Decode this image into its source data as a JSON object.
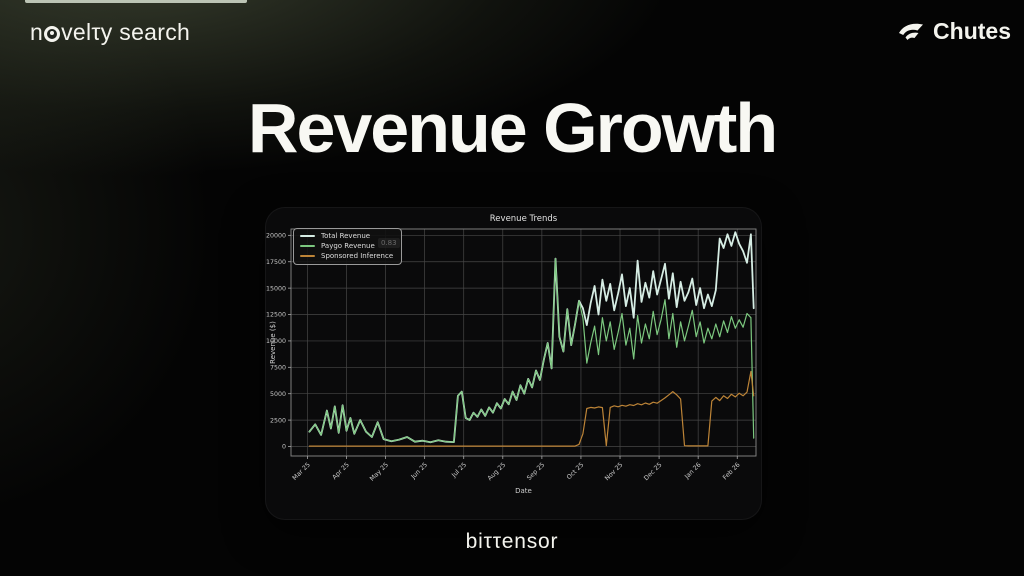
{
  "page": {
    "background": "#040404",
    "top_strip_color": "#ccd5c5",
    "glow_color": "#6c7858"
  },
  "header": {
    "brand_left_pre": "n",
    "brand_left_post": "velτy search",
    "brand_right": "Chutes"
  },
  "hero": {
    "title": "Revenue Growth"
  },
  "footer": {
    "wordmark": "biττensor"
  },
  "chart": {
    "watermark": "0.83"
  },
  "chart_data": {
    "type": "line",
    "title": "Revenue Trends",
    "xlabel": "Date",
    "ylabel": "Revenue ($)",
    "grid": true,
    "legend_position": "upper left",
    "xlim": [
      -0.42,
      11.48
    ],
    "ylim": [
      -900,
      20600
    ],
    "y_ticks": [
      0,
      2500,
      5000,
      7500,
      10000,
      12500,
      15000,
      17500,
      20000
    ],
    "x_ticks": {
      "positions": [
        0,
        1,
        2,
        3,
        4,
        5,
        6,
        7,
        8,
        9,
        10,
        11
      ],
      "labels": [
        "Mar 25",
        "Apr 25",
        "May 25",
        "Jun 25",
        "Jul 25",
        "Aug 25",
        "Sep 25",
        "Oct 25",
        "Nov 25",
        "Dec 25",
        "Jan 26",
        "Feb 26"
      ]
    },
    "x": [
      0.05,
      0.2,
      0.35,
      0.5,
      0.6,
      0.7,
      0.8,
      0.9,
      1.0,
      1.1,
      1.2,
      1.35,
      1.5,
      1.65,
      1.8,
      1.95,
      2.15,
      2.35,
      2.55,
      2.75,
      2.95,
      3.15,
      3.35,
      3.55,
      3.75,
      3.85,
      3.95,
      4.05,
      4.15,
      4.25,
      4.35,
      4.45,
      4.55,
      4.65,
      4.75,
      4.85,
      4.95,
      5.05,
      5.15,
      5.25,
      5.35,
      5.45,
      5.55,
      5.65,
      5.75,
      5.85,
      5.95,
      6.05,
      6.15,
      6.25,
      6.35,
      6.45,
      6.55,
      6.65,
      6.75,
      6.85,
      6.95,
      7.05,
      7.15,
      7.25,
      7.35,
      7.45,
      7.55,
      7.65,
      7.75,
      7.85,
      7.95,
      8.05,
      8.15,
      8.25,
      8.35,
      8.45,
      8.55,
      8.65,
      8.75,
      8.85,
      8.95,
      9.05,
      9.15,
      9.25,
      9.35,
      9.45,
      9.55,
      9.65,
      9.75,
      9.85,
      9.95,
      10.05,
      10.15,
      10.25,
      10.35,
      10.45,
      10.55,
      10.65,
      10.75,
      10.85,
      10.95,
      11.05,
      11.15,
      11.25,
      11.35,
      11.42
    ],
    "series": [
      {
        "name": "Total Revenue",
        "color": "#d6ede4",
        "width": 1.8,
        "y": [
          1400,
          2100,
          1100,
          3400,
          1700,
          3800,
          1300,
          3900,
          1500,
          2700,
          1200,
          2500,
          1400,
          900,
          2300,
          700,
          500,
          650,
          900,
          450,
          550,
          400,
          600,
          450,
          420,
          4800,
          5200,
          2700,
          2500,
          3200,
          2800,
          3500,
          2900,
          3700,
          3200,
          4100,
          3600,
          4500,
          4000,
          5200,
          4400,
          5800,
          5000,
          6400,
          5600,
          7200,
          6300,
          8200,
          9800,
          7400,
          17800,
          10400,
          9000,
          13000,
          9600,
          11600,
          13800,
          13100,
          11500,
          13600,
          15200,
          12500,
          15800,
          13800,
          15400,
          12900,
          14500,
          16300,
          13300,
          15000,
          12200,
          17600,
          13700,
          15500,
          14100,
          16600,
          14400,
          15800,
          17300,
          14000,
          16400,
          13200,
          15600,
          13800,
          14600,
          15900,
          13400,
          15000,
          13100,
          14400,
          13300,
          14800,
          19700,
          18800,
          20100,
          19000,
          20300,
          19200,
          18500,
          17400,
          20100,
          13100
        ]
      },
      {
        "name": "Paygo Revenue",
        "color": "#7cc87f",
        "width": 1.2,
        "y": [
          1400,
          2100,
          1100,
          3400,
          1700,
          3800,
          1300,
          3900,
          1500,
          2700,
          1200,
          2500,
          1400,
          900,
          2300,
          700,
          500,
          650,
          900,
          450,
          550,
          400,
          600,
          450,
          420,
          4800,
          5200,
          2700,
          2500,
          3200,
          2800,
          3500,
          2900,
          3700,
          3200,
          4100,
          3600,
          4500,
          4000,
          5200,
          4400,
          5800,
          5000,
          6400,
          5600,
          7200,
          6300,
          8200,
          9800,
          7400,
          17800,
          10400,
          9000,
          13000,
          9600,
          11600,
          13800,
          12200,
          7900,
          9800,
          11400,
          8700,
          12200,
          10000,
          11800,
          9200,
          10800,
          12600,
          9600,
          11200,
          8300,
          12400,
          9800,
          11600,
          10200,
          12800,
          10600,
          12000,
          13900,
          10200,
          12600,
          9400,
          11800,
          10000,
          11400,
          12900,
          10400,
          11800,
          9800,
          11200,
          10200,
          11600,
          10400,
          11900,
          10800,
          12300,
          11200,
          12000,
          11300,
          12600,
          12200,
          800
        ]
      },
      {
        "name": "Sponsored Inference",
        "color": "#bd8437",
        "width": 1.2,
        "y": [
          40,
          40,
          40,
          40,
          40,
          40,
          40,
          40,
          40,
          40,
          40,
          40,
          40,
          40,
          40,
          40,
          40,
          40,
          40,
          40,
          40,
          40,
          40,
          40,
          40,
          40,
          40,
          40,
          40,
          40,
          40,
          40,
          40,
          40,
          40,
          40,
          40,
          40,
          40,
          40,
          40,
          40,
          40,
          40,
          40,
          40,
          40,
          40,
          40,
          40,
          40,
          40,
          40,
          40,
          40,
          40,
          200,
          1200,
          3600,
          3700,
          3650,
          3750,
          3680,
          80,
          3700,
          3850,
          3760,
          3900,
          3820,
          3960,
          3880,
          4050,
          3950,
          4120,
          4000,
          4200,
          4100,
          4350,
          4600,
          4900,
          5200,
          4900,
          4500,
          80,
          60,
          60,
          60,
          60,
          60,
          60,
          4300,
          4650,
          4350,
          4800,
          4550,
          4950,
          4700,
          5050,
          4800,
          5150,
          7100,
          4800
        ]
      }
    ]
  }
}
